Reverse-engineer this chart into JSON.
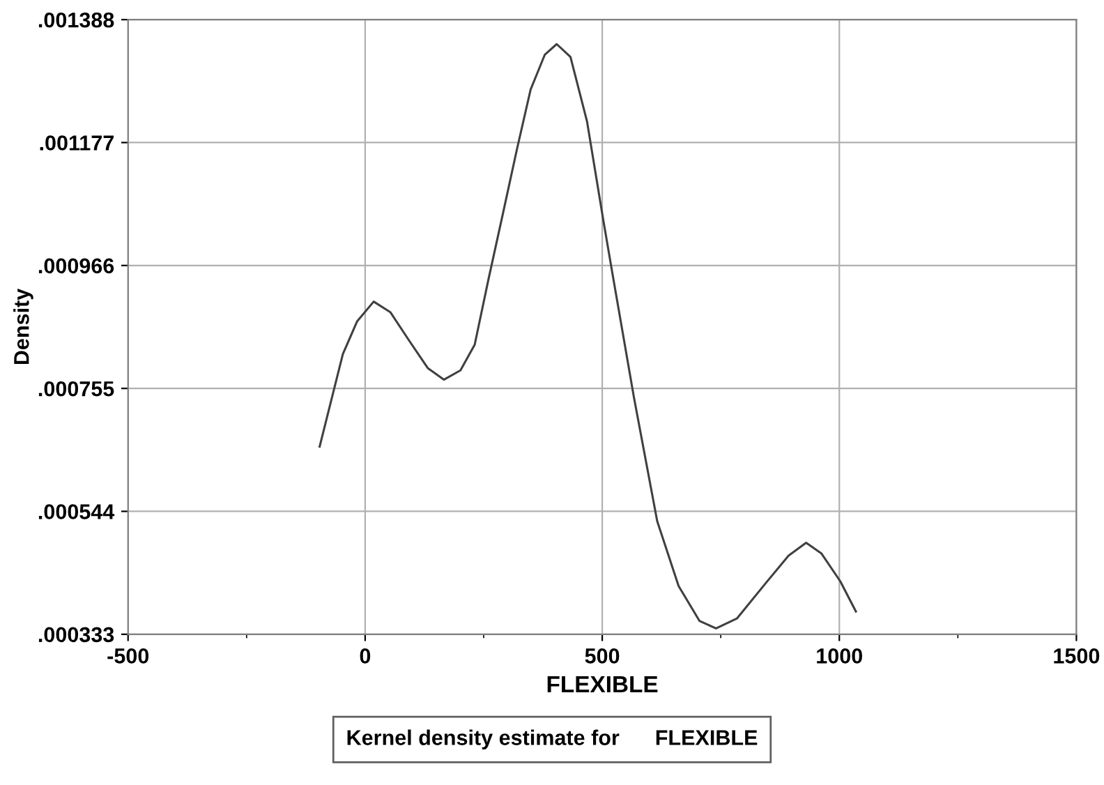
{
  "chart_data": {
    "type": "line",
    "xlabel": "FLEXIBLE",
    "ylabel": "Density",
    "annotations": [
      "Kernel density estimate for      FLEXIBLE"
    ],
    "x": [
      -96,
      -47,
      -17,
      18,
      53,
      92,
      132,
      166,
      201,
      231,
      260,
      290,
      320,
      349,
      379,
      404,
      433,
      468,
      502,
      522,
      567,
      616,
      661,
      705,
      740,
      784,
      844,
      893,
      930,
      962,
      1002,
      1035
    ],
    "series": [
      {
        "color": "#404040",
        "values": [
          0.000655,
          0.000814,
          0.00087,
          0.000904,
          0.000886,
          0.000838,
          0.00079,
          0.00077,
          0.000786,
          0.00083,
          0.000942,
          0.001053,
          0.001165,
          0.001268,
          0.001328,
          0.001346,
          0.001324,
          0.001213,
          0.001045,
          0.00095,
          0.000739,
          0.000527,
          0.000416,
          0.000356,
          0.000343,
          0.00036,
          0.00042,
          0.000468,
          0.00049,
          0.000472,
          0.000424,
          0.000372
        ]
      }
    ],
    "xlim": [
      -500,
      1500
    ],
    "ylim": [
      0.000333,
      0.001388
    ],
    "xticks": [
      -500,
      {
        "value": -250,
        "label": null
      },
      0,
      {
        "value": 250,
        "label": null
      },
      500,
      {
        "value": 750,
        "label": null
      },
      1000,
      {
        "value": 1250,
        "label": null
      },
      1500
    ],
    "yticks": [
      {
        "value": 0.000333,
        "label": ".000333"
      },
      {
        "value": 0.000544,
        "label": ".000544"
      },
      {
        "value": 0.000755,
        "label": ".000755"
      },
      {
        "value": 0.000966,
        "label": ".000966"
      },
      {
        "value": 0.001177,
        "label": ".001177"
      },
      {
        "value": 0.001388,
        "label": ".001388"
      }
    ],
    "grid": true,
    "legend": false,
    "marker": "none",
    "line_style": "solid"
  }
}
